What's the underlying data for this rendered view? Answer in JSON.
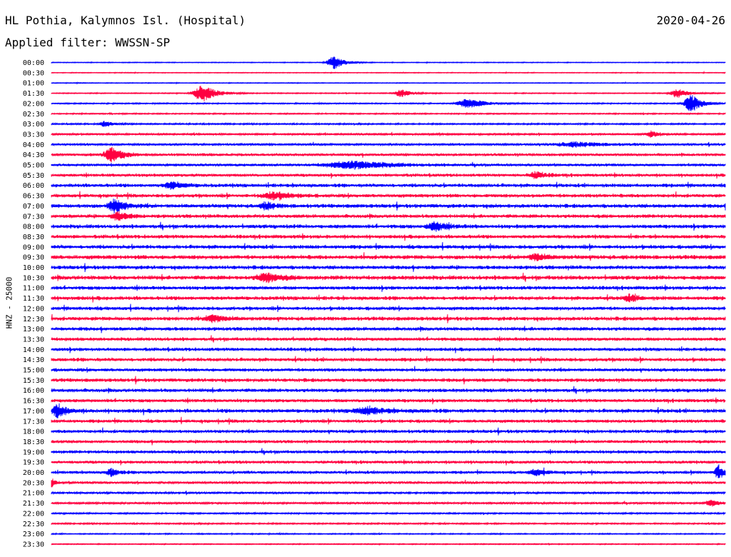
{
  "header": {
    "station": "HL Pothia, Kalymnos Isl. (Hospital)",
    "date": "2020-04-26",
    "filter": "Applied filter: WWSSN-SP"
  },
  "chart_data": {
    "type": "line",
    "title": "HL Pothia, Kalymnos Isl. (Hospital)",
    "ylabel": "HNZ - 25000",
    "filter": "WWSSN-SP",
    "date": "2020-04-26",
    "trace_count": 48,
    "series_colors": [
      "#0000ff",
      "#ff0040"
    ],
    "color_pattern": "alternating, 00:00 blue",
    "rows": [
      {
        "label": "00:00",
        "noise": 0.6,
        "events": [
          [
            0.42,
            9,
            0.02
          ]
        ]
      },
      {
        "label": "00:30",
        "noise": 0.6,
        "events": []
      },
      {
        "label": "01:00",
        "noise": 0.6,
        "events": []
      },
      {
        "label": "01:30",
        "noise": 0.8,
        "events": [
          [
            0.225,
            12,
            0.025
          ],
          [
            0.52,
            5,
            0.02
          ],
          [
            0.93,
            6,
            0.02
          ]
        ]
      },
      {
        "label": "02:00",
        "noise": 1.0,
        "events": [
          [
            0.62,
            7,
            0.03
          ],
          [
            0.95,
            12,
            0.02
          ]
        ]
      },
      {
        "label": "02:30",
        "noise": 1.0,
        "events": []
      },
      {
        "label": "03:00",
        "noise": 1.2,
        "events": [
          [
            0.08,
            4,
            0.015
          ]
        ]
      },
      {
        "label": "03:30",
        "noise": 1.5,
        "events": [
          [
            0.89,
            4,
            0.015
          ]
        ]
      },
      {
        "label": "04:00",
        "noise": 1.8,
        "events": [
          [
            0.78,
            3,
            0.06
          ]
        ]
      },
      {
        "label": "04:30",
        "noise": 2.2,
        "events": [
          [
            0.09,
            11,
            0.02
          ]
        ]
      },
      {
        "label": "05:00",
        "noise": 2.0,
        "events": [
          [
            0.45,
            5,
            0.08
          ]
        ]
      },
      {
        "label": "05:30",
        "noise": 2.5,
        "events": [
          [
            0.72,
            4,
            0.02
          ]
        ]
      },
      {
        "label": "06:00",
        "noise": 3.0,
        "events": [
          [
            0.18,
            5,
            0.02
          ]
        ]
      },
      {
        "label": "06:30",
        "noise": 3.0,
        "events": [
          [
            0.33,
            5,
            0.03
          ]
        ]
      },
      {
        "label": "07:00",
        "noise": 3.2,
        "events": [
          [
            0.095,
            9,
            0.02
          ],
          [
            0.32,
            5,
            0.015
          ]
        ]
      },
      {
        "label": "07:30",
        "noise": 3.0,
        "events": [
          [
            0.1,
            5,
            0.02
          ]
        ]
      },
      {
        "label": "08:00",
        "noise": 3.2,
        "events": [
          [
            0.57,
            6,
            0.02
          ]
        ]
      },
      {
        "label": "08:30",
        "noise": 3.0,
        "events": []
      },
      {
        "label": "09:00",
        "noise": 3.2,
        "events": []
      },
      {
        "label": "09:30",
        "noise": 3.5,
        "events": [
          [
            0.72,
            4,
            0.02
          ]
        ]
      },
      {
        "label": "10:00",
        "noise": 3.2,
        "events": []
      },
      {
        "label": "10:30",
        "noise": 3.5,
        "events": [
          [
            0.32,
            6,
            0.025
          ]
        ]
      },
      {
        "label": "11:00",
        "noise": 3.0,
        "events": []
      },
      {
        "label": "11:30",
        "noise": 3.2,
        "events": [
          [
            0.86,
            4,
            0.02
          ]
        ]
      },
      {
        "label": "12:00",
        "noise": 3.0,
        "events": []
      },
      {
        "label": "12:30",
        "noise": 3.2,
        "events": [
          [
            0.24,
            5,
            0.02
          ]
        ]
      },
      {
        "label": "13:00",
        "noise": 3.0,
        "events": []
      },
      {
        "label": "13:30",
        "noise": 2.8,
        "events": []
      },
      {
        "label": "14:00",
        "noise": 2.8,
        "events": []
      },
      {
        "label": "14:30",
        "noise": 3.0,
        "events": []
      },
      {
        "label": "15:00",
        "noise": 2.8,
        "events": []
      },
      {
        "label": "15:30",
        "noise": 3.0,
        "events": []
      },
      {
        "label": "16:00",
        "noise": 3.0,
        "events": []
      },
      {
        "label": "16:30",
        "noise": 2.8,
        "events": []
      },
      {
        "label": "17:00",
        "noise": 3.2,
        "events": [
          [
            0.01,
            9,
            0.015
          ],
          [
            0.47,
            4,
            0.04
          ]
        ]
      },
      {
        "label": "17:30",
        "noise": 2.8,
        "events": []
      },
      {
        "label": "18:00",
        "noise": 2.8,
        "events": []
      },
      {
        "label": "18:30",
        "noise": 2.6,
        "events": []
      },
      {
        "label": "19:00",
        "noise": 2.6,
        "events": []
      },
      {
        "label": "19:30",
        "noise": 2.4,
        "events": []
      },
      {
        "label": "20:00",
        "noise": 2.4,
        "events": [
          [
            0.09,
            5,
            0.015
          ],
          [
            0.72,
            4,
            0.02
          ],
          [
            0.99,
            10,
            0.01
          ]
        ]
      },
      {
        "label": "20:30",
        "noise": 2.0,
        "events": [
          [
            0.0,
            7,
            0.008
          ]
        ]
      },
      {
        "label": "21:00",
        "noise": 1.6,
        "events": []
      },
      {
        "label": "21:30",
        "noise": 1.6,
        "events": [
          [
            0.98,
            4,
            0.015
          ]
        ]
      },
      {
        "label": "22:00",
        "noise": 1.2,
        "events": []
      },
      {
        "label": "22:30",
        "noise": 1.2,
        "events": []
      },
      {
        "label": "23:00",
        "noise": 0.9,
        "events": []
      },
      {
        "label": "23:30",
        "noise": 0.8,
        "events": []
      }
    ]
  }
}
